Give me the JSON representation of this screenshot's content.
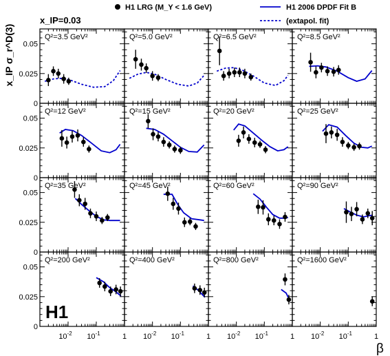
{
  "chart_data": {
    "type": "scatter",
    "title": "",
    "subtitle": "x_IP=0.03",
    "ylabel": "x_IP σ_r^D(3)",
    "xlabel": "β",
    "experiment_label": "H1",
    "x_scale": "log",
    "xlim": [
      0.001,
      1.0
    ],
    "ylim": [
      0,
      0.0625
    ],
    "y_ticks": [
      "0",
      "0.025",
      "0.05"
    ],
    "x_ticks": [
      "10^-2",
      "10^-1",
      "1"
    ],
    "grid": false,
    "legend_placement": "top",
    "legend": {
      "data": "H1 LRG (M_Y < 1.6 GeV)",
      "fit": "H1 2006 DPDF Fit B",
      "extrap": "(extapol. fit)"
    },
    "colors": {
      "fit": "#0000cc",
      "data": "#000000"
    },
    "panels": [
      {
        "q2_label": "Q²=3.5 GeV²",
        "points": [
          [
            0.002,
            0.0195,
            0.005
          ],
          [
            0.003,
            0.027,
            0.004
          ],
          [
            0.0045,
            0.025,
            0.004
          ],
          [
            0.007,
            0.0205,
            0.004
          ],
          [
            0.0105,
            0.0185,
            0.003
          ]
        ],
        "fit_solid": [],
        "fit_dashed": [
          [
            0.0015,
            0.0185
          ],
          [
            0.003,
            0.0205
          ],
          [
            0.006,
            0.021
          ],
          [
            0.012,
            0.0195
          ],
          [
            0.03,
            0.016
          ],
          [
            0.08,
            0.0135
          ],
          [
            0.2,
            0.014
          ],
          [
            0.4,
            0.019
          ],
          [
            0.7,
            0.0275
          ]
        ]
      },
      {
        "q2_label": "Q²=5.0 GeV²",
        "points": [
          [
            0.0025,
            0.037,
            0.008
          ],
          [
            0.004,
            0.0325,
            0.005
          ],
          [
            0.006,
            0.0295,
            0.004
          ],
          [
            0.01,
            0.023,
            0.004
          ],
          [
            0.016,
            0.0215,
            0.003
          ]
        ],
        "fit_solid": [],
        "fit_dashed": [
          [
            0.0015,
            0.021
          ],
          [
            0.003,
            0.0245
          ],
          [
            0.006,
            0.026
          ],
          [
            0.012,
            0.0245
          ],
          [
            0.03,
            0.02
          ],
          [
            0.08,
            0.016
          ],
          [
            0.2,
            0.0145
          ],
          [
            0.4,
            0.017
          ],
          [
            0.7,
            0.0235
          ]
        ]
      },
      {
        "q2_label": "Q²=6.5 GeV²",
        "points": [
          [
            0.0025,
            0.044,
            0.012
          ],
          [
            0.0035,
            0.023,
            0.004
          ],
          [
            0.0055,
            0.025,
            0.004
          ],
          [
            0.0085,
            0.026,
            0.004
          ],
          [
            0.013,
            0.026,
            0.004
          ],
          [
            0.02,
            0.025,
            0.004
          ],
          [
            0.033,
            0.022,
            0.003
          ]
        ],
        "fit_solid": [],
        "fit_dashed": [
          [
            0.002,
            0.027
          ],
          [
            0.004,
            0.0295
          ],
          [
            0.008,
            0.03
          ],
          [
            0.016,
            0.028
          ],
          [
            0.04,
            0.023
          ],
          [
            0.1,
            0.017
          ],
          [
            0.25,
            0.015
          ],
          [
            0.5,
            0.019
          ],
          [
            0.7,
            0.0235
          ]
        ]
      },
      {
        "q2_label": "Q²=8.5 GeV²",
        "points": [
          [
            0.0045,
            0.0345,
            0.008
          ],
          [
            0.007,
            0.026,
            0.005
          ],
          [
            0.011,
            0.03,
            0.004
          ],
          [
            0.018,
            0.027,
            0.004
          ],
          [
            0.03,
            0.0265,
            0.004
          ],
          [
            0.045,
            0.028,
            0.004
          ]
        ],
        "fit_solid": [
          [
            0.004,
            0.031
          ],
          [
            0.008,
            0.0315
          ],
          [
            0.016,
            0.0305
          ],
          [
            0.04,
            0.027
          ],
          [
            0.1,
            0.0215
          ],
          [
            0.2,
            0.0185
          ],
          [
            0.4,
            0.0205
          ],
          [
            0.7,
            0.0275
          ]
        ],
        "fit_dashed": []
      },
      {
        "q2_label": "Q²=12 GeV²",
        "points": [
          [
            0.006,
            0.033,
            0.007
          ],
          [
            0.009,
            0.0295,
            0.005
          ],
          [
            0.014,
            0.0345,
            0.005
          ],
          [
            0.022,
            0.0355,
            0.005
          ],
          [
            0.035,
            0.03,
            0.004
          ],
          [
            0.055,
            0.024,
            0.003
          ]
        ],
        "fit_solid": [
          [
            0.005,
            0.0375
          ],
          [
            0.008,
            0.0405
          ],
          [
            0.015,
            0.0395
          ],
          [
            0.03,
            0.0355
          ],
          [
            0.06,
            0.03
          ],
          [
            0.15,
            0.0225
          ],
          [
            0.3,
            0.021
          ],
          [
            0.5,
            0.0235
          ],
          [
            0.7,
            0.028
          ]
        ],
        "fit_dashed": []
      },
      {
        "q2_label": "Q²=15 GeV²",
        "points": [
          [
            0.007,
            0.0475,
            0.006
          ],
          [
            0.0105,
            0.0365,
            0.005
          ],
          [
            0.016,
            0.0345,
            0.004
          ],
          [
            0.025,
            0.03,
            0.004
          ],
          [
            0.04,
            0.0275,
            0.003
          ],
          [
            0.062,
            0.024,
            0.003
          ],
          [
            0.1,
            0.023,
            0.003
          ]
        ],
        "fit_solid": [
          [
            0.006,
            0.0415
          ],
          [
            0.012,
            0.0405
          ],
          [
            0.025,
            0.0365
          ],
          [
            0.05,
            0.031
          ],
          [
            0.1,
            0.0255
          ],
          [
            0.2,
            0.022
          ],
          [
            0.4,
            0.0215
          ],
          [
            0.7,
            0.0275
          ]
        ],
        "fit_dashed": []
      },
      {
        "q2_label": "Q²=20 GeV²",
        "points": [
          [
            0.012,
            0.031,
            0.005
          ],
          [
            0.018,
            0.038,
            0.005
          ],
          [
            0.028,
            0.0325,
            0.004
          ],
          [
            0.045,
            0.0295,
            0.004
          ],
          [
            0.07,
            0.028,
            0.003
          ],
          [
            0.11,
            0.0235,
            0.003
          ]
        ],
        "fit_solid": [
          [
            0.008,
            0.04
          ],
          [
            0.012,
            0.045
          ],
          [
            0.02,
            0.0435
          ],
          [
            0.04,
            0.0375
          ],
          [
            0.08,
            0.0315
          ],
          [
            0.16,
            0.026
          ],
          [
            0.3,
            0.0225
          ],
          [
            0.5,
            0.0235
          ],
          [
            0.7,
            0.026
          ]
        ],
        "fit_dashed": []
      },
      {
        "q2_label": "Q²=25 GeV²",
        "points": [
          [
            0.016,
            0.037,
            0.008
          ],
          [
            0.025,
            0.038,
            0.005
          ],
          [
            0.04,
            0.036,
            0.005
          ],
          [
            0.062,
            0.03,
            0.004
          ],
          [
            0.1,
            0.027,
            0.003
          ],
          [
            0.16,
            0.0255,
            0.003
          ],
          [
            0.25,
            0.0265,
            0.003
          ]
        ],
        "fit_solid": [
          [
            0.012,
            0.039
          ],
          [
            0.02,
            0.0445
          ],
          [
            0.04,
            0.0425
          ],
          [
            0.08,
            0.0355
          ],
          [
            0.16,
            0.029
          ],
          [
            0.3,
            0.0255
          ],
          [
            0.5,
            0.025
          ],
          [
            0.7,
            0.0265
          ]
        ],
        "fit_dashed": []
      },
      {
        "q2_label": "Q²=35 GeV²",
        "points": [
          [
            0.017,
            0.0525,
            0.007
          ],
          [
            0.025,
            0.0435,
            0.005
          ],
          [
            0.04,
            0.0405,
            0.005
          ],
          [
            0.062,
            0.0325,
            0.004
          ],
          [
            0.1,
            0.03,
            0.004
          ],
          [
            0.16,
            0.0265,
            0.003
          ],
          [
            0.25,
            0.029,
            0.003
          ]
        ],
        "fit_solid": [
          [
            0.018,
            0.045
          ],
          [
            0.03,
            0.04
          ],
          [
            0.06,
            0.034
          ],
          [
            0.1,
            0.03
          ],
          [
            0.18,
            0.027
          ],
          [
            0.3,
            0.0265
          ],
          [
            0.5,
            0.0265
          ],
          [
            0.7,
            0.0265
          ]
        ],
        "fit_dashed": []
      },
      {
        "q2_label": "Q²=45 GeV²",
        "points": [
          [
            0.035,
            0.049,
            0.006
          ],
          [
            0.055,
            0.0405,
            0.005
          ],
          [
            0.085,
            0.0365,
            0.005
          ],
          [
            0.14,
            0.025,
            0.004
          ],
          [
            0.22,
            0.0255,
            0.003
          ],
          [
            0.35,
            0.0215,
            0.003
          ]
        ],
        "fit_solid": [
          [
            0.025,
            0.0485
          ],
          [
            0.05,
            0.0485
          ],
          [
            0.08,
            0.04
          ],
          [
            0.13,
            0.033
          ],
          [
            0.25,
            0.028
          ],
          [
            0.5,
            0.027
          ],
          [
            0.7,
            0.0265
          ]
        ],
        "fit_dashed": []
      },
      {
        "q2_label": "Q²=60 GeV²",
        "points": [
          [
            0.06,
            0.038,
            0.006
          ],
          [
            0.09,
            0.0375,
            0.006
          ],
          [
            0.14,
            0.0275,
            0.005
          ],
          [
            0.22,
            0.0265,
            0.004
          ],
          [
            0.35,
            0.0235,
            0.004
          ],
          [
            0.55,
            0.0295,
            0.004
          ]
        ],
        "fit_solid": [
          [
            0.04,
            0.049
          ],
          [
            0.07,
            0.0445
          ],
          [
            0.12,
            0.0375
          ],
          [
            0.2,
            0.0315
          ],
          [
            0.35,
            0.0285
          ],
          [
            0.55,
            0.0285
          ],
          [
            0.7,
            0.029
          ]
        ],
        "fit_dashed": []
      },
      {
        "q2_label": "Q²=90 GeV²",
        "points": [
          [
            0.085,
            0.0335,
            0.009
          ],
          [
            0.13,
            0.032,
            0.006
          ],
          [
            0.2,
            0.036,
            0.006
          ],
          [
            0.32,
            0.0275,
            0.004
          ],
          [
            0.5,
            0.0325,
            0.004
          ],
          [
            0.72,
            0.0285,
            0.006
          ]
        ],
        "fit_solid": [
          [
            0.07,
            0.0365
          ],
          [
            0.12,
            0.0335
          ],
          [
            0.2,
            0.031
          ],
          [
            0.35,
            0.0295
          ],
          [
            0.55,
            0.0305
          ],
          [
            0.75,
            0.031
          ]
        ],
        "fit_dashed": []
      },
      {
        "q2_label": "Q²=200 GeV²",
        "points": [
          [
            0.13,
            0.0365,
            0.004
          ],
          [
            0.2,
            0.0335,
            0.004
          ],
          [
            0.32,
            0.0295,
            0.004
          ],
          [
            0.5,
            0.031,
            0.004
          ],
          [
            0.72,
            0.0295,
            0.004
          ]
        ],
        "fit_solid": [
          [
            0.1,
            0.041
          ],
          [
            0.18,
            0.0375
          ],
          [
            0.3,
            0.0325
          ],
          [
            0.5,
            0.029
          ],
          [
            0.75,
            0.0255
          ]
        ],
        "fit_dashed": []
      },
      {
        "q2_label": "Q²=400 GeV²",
        "points": [
          [
            0.32,
            0.032,
            0.004
          ],
          [
            0.5,
            0.0305,
            0.004
          ],
          [
            0.72,
            0.0285,
            0.004
          ]
        ],
        "fit_solid": [
          [
            0.28,
            0.034
          ],
          [
            0.45,
            0.03
          ],
          [
            0.75,
            0.0245
          ]
        ],
        "fit_dashed": []
      },
      {
        "q2_label": "Q²=800 GeV²",
        "points": [
          [
            0.55,
            0.0395,
            0.005
          ],
          [
            0.75,
            0.0225,
            0.004
          ]
        ],
        "fit_solid": [
          [
            0.4,
            0.031
          ],
          [
            0.6,
            0.028
          ],
          [
            0.78,
            0.0225
          ]
        ],
        "fit_dashed": []
      },
      {
        "q2_label": "Q²=1600 GeV²",
        "points": [
          [
            0.72,
            0.021,
            0.004
          ]
        ],
        "fit_solid": [],
        "fit_dashed": []
      }
    ]
  }
}
